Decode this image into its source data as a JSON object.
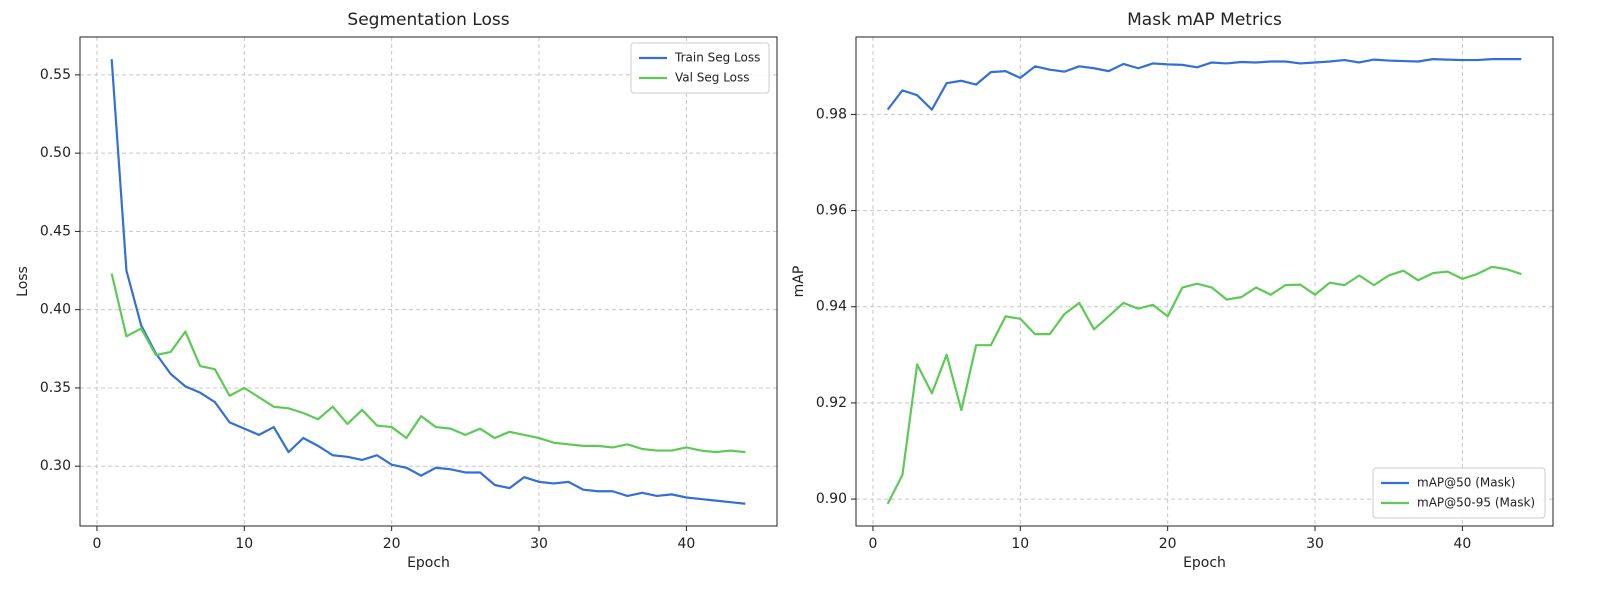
{
  "chart_data": [
    {
      "type": "line",
      "title": "Segmentation Loss",
      "x_label": "Epoch",
      "y_label": "Loss",
      "x": [
        1,
        2,
        3,
        4,
        5,
        6,
        7,
        8,
        9,
        10,
        11,
        12,
        13,
        14,
        15,
        16,
        17,
        18,
        19,
        20,
        21,
        22,
        23,
        24,
        25,
        26,
        27,
        28,
        29,
        30,
        31,
        32,
        33,
        34,
        35,
        36,
        37,
        38,
        39,
        40,
        41,
        42,
        43,
        44
      ],
      "series": [
        {
          "name": "Train Seg Loss",
          "color": "#3470d4",
          "values": [
            0.56,
            0.425,
            0.39,
            0.372,
            0.359,
            0.351,
            0.347,
            0.341,
            0.328,
            0.324,
            0.32,
            0.325,
            0.309,
            0.318,
            0.313,
            0.307,
            0.306,
            0.304,
            0.307,
            0.301,
            0.299,
            0.294,
            0.299,
            0.298,
            0.296,
            0.296,
            0.288,
            0.286,
            0.293,
            0.29,
            0.289,
            0.29,
            0.285,
            0.284,
            0.284,
            0.281,
            0.283,
            0.281,
            0.282,
            0.28,
            0.279,
            0.278,
            0.277,
            0.276
          ]
        },
        {
          "name": "Val Seg Loss",
          "color": "#5dc956",
          "values": [
            0.423,
            0.383,
            0.388,
            0.371,
            0.373,
            0.386,
            0.364,
            0.362,
            0.345,
            0.35,
            0.344,
            0.338,
            0.337,
            0.334,
            0.33,
            0.338,
            0.327,
            0.336,
            0.326,
            0.325,
            0.318,
            0.332,
            0.325,
            0.324,
            0.32,
            0.324,
            0.318,
            0.322,
            0.32,
            0.318,
            0.315,
            0.314,
            0.313,
            0.313,
            0.312,
            0.314,
            0.311,
            0.31,
            0.31,
            0.312,
            0.31,
            0.309,
            0.31,
            0.309
          ]
        }
      ],
      "xlim": [
        -1.15,
        46.15
      ],
      "xticks": [
        0,
        10,
        20,
        30,
        40
      ],
      "ylim": [
        0.2618,
        0.5742
      ],
      "yticks": [
        {
          "value": 0.3,
          "label": "0.30"
        },
        0.35,
        {
          "value": 0.4,
          "label": "0.40"
        },
        0.45,
        {
          "value": 0.5,
          "label": "0.50"
        },
        0.55
      ],
      "grid": true,
      "legend": "upper right"
    },
    {
      "type": "line",
      "title": "Mask mAP Metrics",
      "x_label": "Epoch",
      "y_label": "mAP",
      "x": [
        1,
        2,
        3,
        4,
        5,
        6,
        7,
        8,
        9,
        10,
        11,
        12,
        13,
        14,
        15,
        16,
        17,
        18,
        19,
        20,
        21,
        22,
        23,
        24,
        25,
        26,
        27,
        28,
        29,
        30,
        31,
        32,
        33,
        34,
        35,
        36,
        37,
        38,
        39,
        40,
        41,
        42,
        43,
        44
      ],
      "series": [
        {
          "name": "mAP@50 (Mask)",
          "color": "#3470d4",
          "values": [
            0.981,
            0.985,
            0.984,
            0.981,
            0.9865,
            0.987,
            0.9862,
            0.9888,
            0.989,
            0.9876,
            0.99,
            0.9893,
            0.9889,
            0.99,
            0.9896,
            0.989,
            0.9905,
            0.9896,
            0.9906,
            0.9904,
            0.9903,
            0.9898,
            0.9908,
            0.9906,
            0.9909,
            0.9908,
            0.991,
            0.991,
            0.9906,
            0.9908,
            0.991,
            0.9913,
            0.9908,
            0.9914,
            0.9912,
            0.9911,
            0.991,
            0.9915,
            0.9914,
            0.9913,
            0.9913,
            0.9915,
            0.9915,
            0.9915
          ]
        },
        {
          "name": "mAP@50-95 (Mask)",
          "color": "#5dc956",
          "values": [
            0.899,
            0.905,
            0.928,
            0.922,
            0.93,
            0.9185,
            0.932,
            0.932,
            0.938,
            0.9375,
            0.9343,
            0.9343,
            0.9385,
            0.9408,
            0.9353,
            0.938,
            0.9408,
            0.9396,
            0.9404,
            0.938,
            0.944,
            0.9448,
            0.944,
            0.9415,
            0.942,
            0.944,
            0.9425,
            0.9445,
            0.9446,
            0.9425,
            0.945,
            0.9445,
            0.9465,
            0.9445,
            0.9465,
            0.9475,
            0.9455,
            0.947,
            0.9473,
            0.9458,
            0.9468,
            0.9483,
            0.9478,
            0.9468
          ]
        }
      ],
      "xlim": [
        -1.15,
        46.15
      ],
      "xticks": [
        0,
        10,
        20,
        30,
        40
      ],
      "ylim": [
        0.8944,
        0.9961
      ],
      "yticks": [
        {
          "value": 0.9,
          "label": "0.90"
        },
        0.92,
        0.94,
        0.96,
        0.98
      ],
      "grid": true,
      "legend": "lower right"
    }
  ]
}
